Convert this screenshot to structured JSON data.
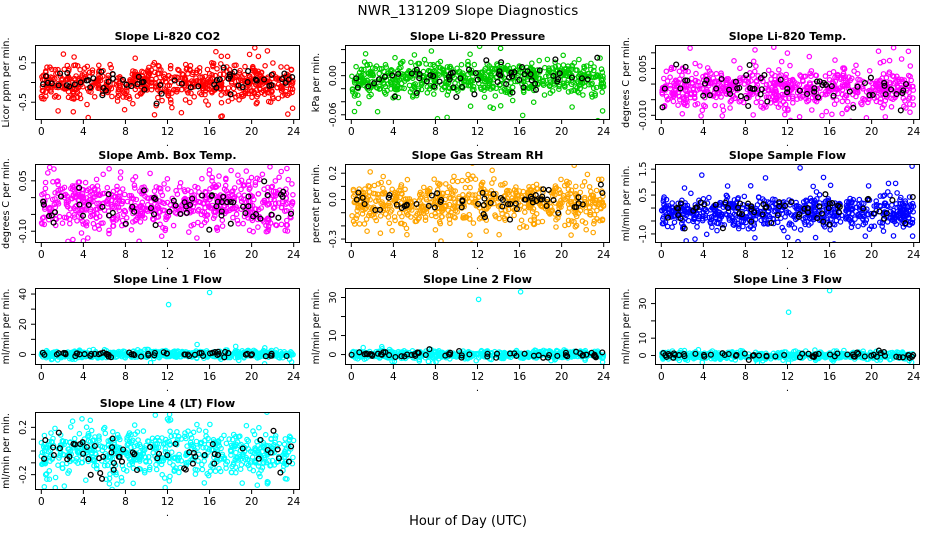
{
  "page": {
    "title": "NWR_131209  Slope Diagnostics",
    "xlabel": "Hour of Day (UTC)",
    "background": "#ffffff"
  },
  "chart_data": {
    "type": "scatter",
    "grid": false,
    "legend": "none",
    "x_axis": {
      "label": "Hour of Day (UTC)",
      "xlim": [
        -0.6,
        24.6
      ],
      "ticks": [
        0,
        4,
        8,
        12,
        16,
        20,
        24
      ],
      "minor_axis_label": "."
    },
    "series_meaning": [
      {
        "name": "minute-slope values",
        "marker": "open-circle",
        "color": "panel color"
      },
      {
        "name": "hourly summary values",
        "marker": "open-circle",
        "color": "#000000"
      }
    ],
    "panels": [
      {
        "title": "Slope Li-820 CO2",
        "ylabel": "Licor ppm per min.",
        "color": "#ff0000",
        "grid_position": {
          "row": 0,
          "col": 0
        },
        "ylim": [
          -0.95,
          0.95
        ],
        "yticks": [
          {
            "v": 0.5,
            "label": "0.5"
          },
          {
            "v": 0.0,
            "label": ""
          },
          {
            "v": -0.5,
            "label": "-0.5"
          }
        ],
        "band": {
          "center": 0.0,
          "sd": 0.22,
          "n": 640
        },
        "black": {
          "center": 0.0,
          "sd": 0.15,
          "n": 62
        },
        "outliers": [
          [
            17.2,
            -0.85
          ],
          [
            20.3,
            0.88
          ],
          [
            21.5,
            0.8
          ],
          [
            16.6,
            0.78
          ],
          [
            2.1,
            0.72
          ],
          [
            1.6,
            -0.72
          ]
        ]
      },
      {
        "title": "Slope Li-820 Pressure",
        "ylabel": "kPa per min.",
        "color": "#00cc00",
        "grid_position": {
          "row": 0,
          "col": 1
        },
        "ylim": [
          -0.068,
          0.047
        ],
        "yticks": [
          {
            "v": 0.04,
            "label": ""
          },
          {
            "v": 0.02,
            "label": ""
          },
          {
            "v": 0.0,
            "label": "0.00"
          },
          {
            "v": -0.02,
            "label": ""
          },
          {
            "v": -0.04,
            "label": ""
          },
          {
            "v": -0.06,
            "label": "-0.06"
          }
        ],
        "band": {
          "center": -0.004,
          "sd": 0.013,
          "n": 640
        },
        "black": {
          "center": -0.004,
          "sd": 0.011,
          "n": 62
        },
        "outliers": [
          [
            0.3,
            -0.055
          ],
          [
            8.2,
            -0.066
          ],
          [
            13.5,
            -0.05
          ],
          [
            16.3,
            -0.061
          ],
          [
            21.0,
            -0.048
          ],
          [
            23.9,
            -0.054
          ],
          [
            12.2,
            0.045
          ],
          [
            14.2,
            0.042
          ]
        ]
      },
      {
        "title": "Slope Li-820 Temp.",
        "ylabel": "degrees C per min.",
        "color": "#ff00ff",
        "grid_position": {
          "row": 0,
          "col": 2
        },
        "ylim": [
          -0.0115,
          0.0125
        ],
        "yticks": [
          {
            "v": 0.01,
            "label": ""
          },
          {
            "v": 0.005,
            "label": "0.005"
          },
          {
            "v": 0.0,
            "label": ""
          },
          {
            "v": -0.005,
            "label": ""
          },
          {
            "v": -0.01,
            "label": "-0.010"
          }
        ],
        "band": {
          "center": -0.0015,
          "sd": 0.003,
          "n": 640
        },
        "black": {
          "center": -0.0015,
          "sd": 0.0027,
          "n": 62
        },
        "outliers": [
          [
            10.7,
            0.0118
          ],
          [
            23.5,
            0.0105
          ],
          [
            19.5,
            -0.0108
          ],
          [
            21.3,
            -0.0105
          ],
          [
            5.8,
            -0.0102
          ],
          [
            2.0,
            -0.0095
          ]
        ]
      },
      {
        "title": "Slope Amb. Box Temp.",
        "ylabel": "degrees C per min.",
        "color": "#ff00ff",
        "grid_position": {
          "row": 1,
          "col": 0
        },
        "ylim": [
          -0.135,
          0.1
        ],
        "yticks": [
          {
            "v": 0.05,
            "label": "0.05"
          },
          {
            "v": 0.0,
            "label": ""
          },
          {
            "v": -0.05,
            "label": ""
          },
          {
            "v": -0.1,
            "label": "-0.10"
          }
        ],
        "band": {
          "center": -0.02,
          "sd": 0.038,
          "n": 640
        },
        "black": {
          "center": -0.02,
          "sd": 0.03,
          "n": 62
        },
        "outliers": [
          [
            3.0,
            -0.125
          ],
          [
            9.3,
            -0.13
          ],
          [
            14.8,
            -0.12
          ],
          [
            1.2,
            0.085
          ],
          [
            0.8,
            0.09
          ],
          [
            16.0,
            0.082
          ]
        ]
      },
      {
        "title": "Slope Gas Stream RH",
        "ylabel": "percent per min.",
        "color": "#ffa500",
        "grid_position": {
          "row": 1,
          "col": 1
        },
        "ylim": [
          -0.33,
          0.27
        ],
        "yticks": [
          {
            "v": 0.2,
            "label": "0.2"
          },
          {
            "v": 0.1,
            "label": ""
          },
          {
            "v": 0.0,
            "label": "0.0"
          },
          {
            "v": -0.1,
            "label": ""
          },
          {
            "v": -0.2,
            "label": ""
          },
          {
            "v": -0.3,
            "label": "-0.3"
          }
        ],
        "band": {
          "center": -0.02,
          "sd": 0.085,
          "n": 640
        },
        "black": {
          "center": -0.02,
          "sd": 0.055,
          "n": 62
        },
        "outliers": [
          [
            21.2,
            0.26
          ],
          [
            1.8,
            0.21
          ],
          [
            20.9,
            -0.27
          ],
          [
            23.0,
            -0.25
          ],
          [
            1.5,
            -0.24
          ],
          [
            8.0,
            -0.23
          ]
        ]
      },
      {
        "title": "Slope Sample Flow",
        "ylabel": "ml/min per min.",
        "color": "#0000ff",
        "grid_position": {
          "row": 1,
          "col": 2
        },
        "ylim": [
          -1.35,
          1.7
        ],
        "yticks": [
          {
            "v": 1.5,
            "label": "1.5"
          },
          {
            "v": 1.0,
            "label": ""
          },
          {
            "v": 0.5,
            "label": "0.5"
          },
          {
            "v": 0.0,
            "label": ""
          },
          {
            "v": -0.5,
            "label": ""
          },
          {
            "v": -1.0,
            "label": "-1.0"
          }
        ],
        "band": {
          "center": -0.15,
          "sd": 0.3,
          "n": 640
        },
        "black": {
          "center": -0.1,
          "sd": 0.28,
          "n": 62
        },
        "outliers": [
          [
            13.2,
            1.55
          ],
          [
            23.85,
            1.62
          ],
          [
            21.6,
            0.95
          ],
          [
            6.3,
            0.85
          ],
          [
            3.2,
            -1.2
          ],
          [
            13.0,
            -1.3
          ],
          [
            8.9,
            -1.15
          ]
        ]
      },
      {
        "title": "Slope Line 1 Flow",
        "ylabel": "ml/min per min.",
        "color": "#00ffff",
        "grid_position": {
          "row": 2,
          "col": 0
        },
        "ylim": [
          -7,
          44
        ],
        "yticks": [
          {
            "v": 40,
            "label": "40"
          },
          {
            "v": 30,
            "label": ""
          },
          {
            "v": 20,
            "label": "20"
          },
          {
            "v": 10,
            "label": ""
          },
          {
            "v": 0,
            "label": "0"
          }
        ],
        "band": {
          "center": 0,
          "sd": 1.2,
          "n": 600
        },
        "black": {
          "center": 0,
          "sd": 0.9,
          "n": 62
        },
        "outliers": [
          [
            12.1,
            33
          ],
          [
            16.0,
            41
          ],
          [
            23.8,
            -5
          ]
        ]
      },
      {
        "title": "Slope Line 2 Flow",
        "ylabel": "ml/min per min.",
        "color": "#00ffff",
        "grid_position": {
          "row": 2,
          "col": 1
        },
        "ylim": [
          -5.5,
          35
        ],
        "yticks": [
          {
            "v": 30,
            "label": "30"
          },
          {
            "v": 20,
            "label": ""
          },
          {
            "v": 10,
            "label": "10"
          },
          {
            "v": 0,
            "label": "0"
          }
        ],
        "band": {
          "center": 0,
          "sd": 1.0,
          "n": 600
        },
        "black": {
          "center": 0,
          "sd": 0.8,
          "n": 62
        },
        "outliers": [
          [
            12.1,
            29
          ],
          [
            16.1,
            33
          ],
          [
            23.9,
            -4
          ]
        ]
      },
      {
        "title": "Slope Line 3 Flow",
        "ylabel": "ml/min per min.",
        "color": "#00ffff",
        "grid_position": {
          "row": 2,
          "col": 2
        },
        "ylim": [
          -5.5,
          39
        ],
        "yticks": [
          {
            "v": 30,
            "label": "30"
          },
          {
            "v": 20,
            "label": ""
          },
          {
            "v": 10,
            "label": "10"
          },
          {
            "v": 0,
            "label": "0"
          }
        ],
        "band": {
          "center": 0,
          "sd": 1.1,
          "n": 600
        },
        "black": {
          "center": 0,
          "sd": 0.9,
          "n": 62
        },
        "outliers": [
          [
            12.1,
            25
          ],
          [
            16.0,
            37.5
          ],
          [
            23.8,
            -4
          ]
        ]
      },
      {
        "title": "Slope Line 4 (LT) Flow",
        "ylabel": "ml/min per min.",
        "color": "#00ffff",
        "grid_position": {
          "row": 3,
          "col": 0
        },
        "ylim": [
          -0.33,
          0.33
        ],
        "yticks": [
          {
            "v": 0.2,
            "label": "0.2"
          },
          {
            "v": 0.1,
            "label": ""
          },
          {
            "v": 0.0,
            "label": ""
          },
          {
            "v": -0.1,
            "label": ""
          },
          {
            "v": -0.2,
            "label": "-0.2"
          }
        ],
        "band": {
          "center": -0.02,
          "sd": 0.1,
          "n": 640
        },
        "black": {
          "center": -0.02,
          "sd": 0.09,
          "n": 62
        },
        "outliers": [
          [
            12.2,
            0.31
          ],
          [
            12.0,
            0.27
          ],
          [
            7.2,
            -0.28
          ],
          [
            15.5,
            -0.27
          ],
          [
            21.5,
            -0.26
          ]
        ]
      }
    ]
  }
}
